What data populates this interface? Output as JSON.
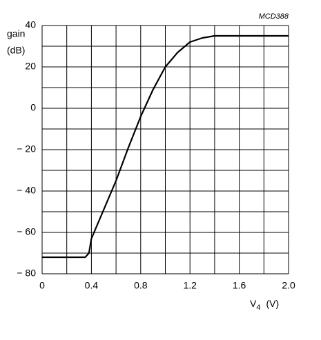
{
  "chart_data": {
    "type": "line",
    "code": "MCD388",
    "ylabel": [
      "gain",
      "(dB)"
    ],
    "xlabel": {
      "symbol": "V",
      "subscript": "4",
      "unit": "(V)"
    },
    "x": [
      0,
      0.2,
      0.35,
      0.38,
      0.4,
      0.5,
      0.6,
      0.7,
      0.8,
      0.9,
      1.0,
      1.1,
      1.2,
      1.3,
      1.4,
      1.6,
      2.0
    ],
    "series": [
      {
        "color": "#000000",
        "values": [
          -72,
          -72,
          -72,
          -70,
          -63,
          -49,
          -35,
          -19,
          -4,
          9,
          20,
          27,
          32,
          34,
          35,
          35,
          35
        ]
      }
    ],
    "xlim": [
      0,
      2
    ],
    "ylim": [
      -80,
      40
    ],
    "xticks": [
      0,
      0.4,
      0.8,
      1.2,
      1.6,
      {
        "value": 2,
        "label": "2.0"
      }
    ],
    "xminor": [
      0.2,
      0.6,
      1.0,
      1.4,
      1.8
    ],
    "yticks": [
      40,
      20,
      0,
      {
        "value": -20,
        "label": "− 20"
      },
      {
        "value": -40,
        "label": "− 40"
      },
      {
        "value": -60,
        "label": "− 60"
      },
      {
        "value": -80,
        "label": "− 80"
      }
    ],
    "yminor": [
      30,
      10,
      -10,
      -30,
      -50,
      -70
    ],
    "grid": true
  }
}
